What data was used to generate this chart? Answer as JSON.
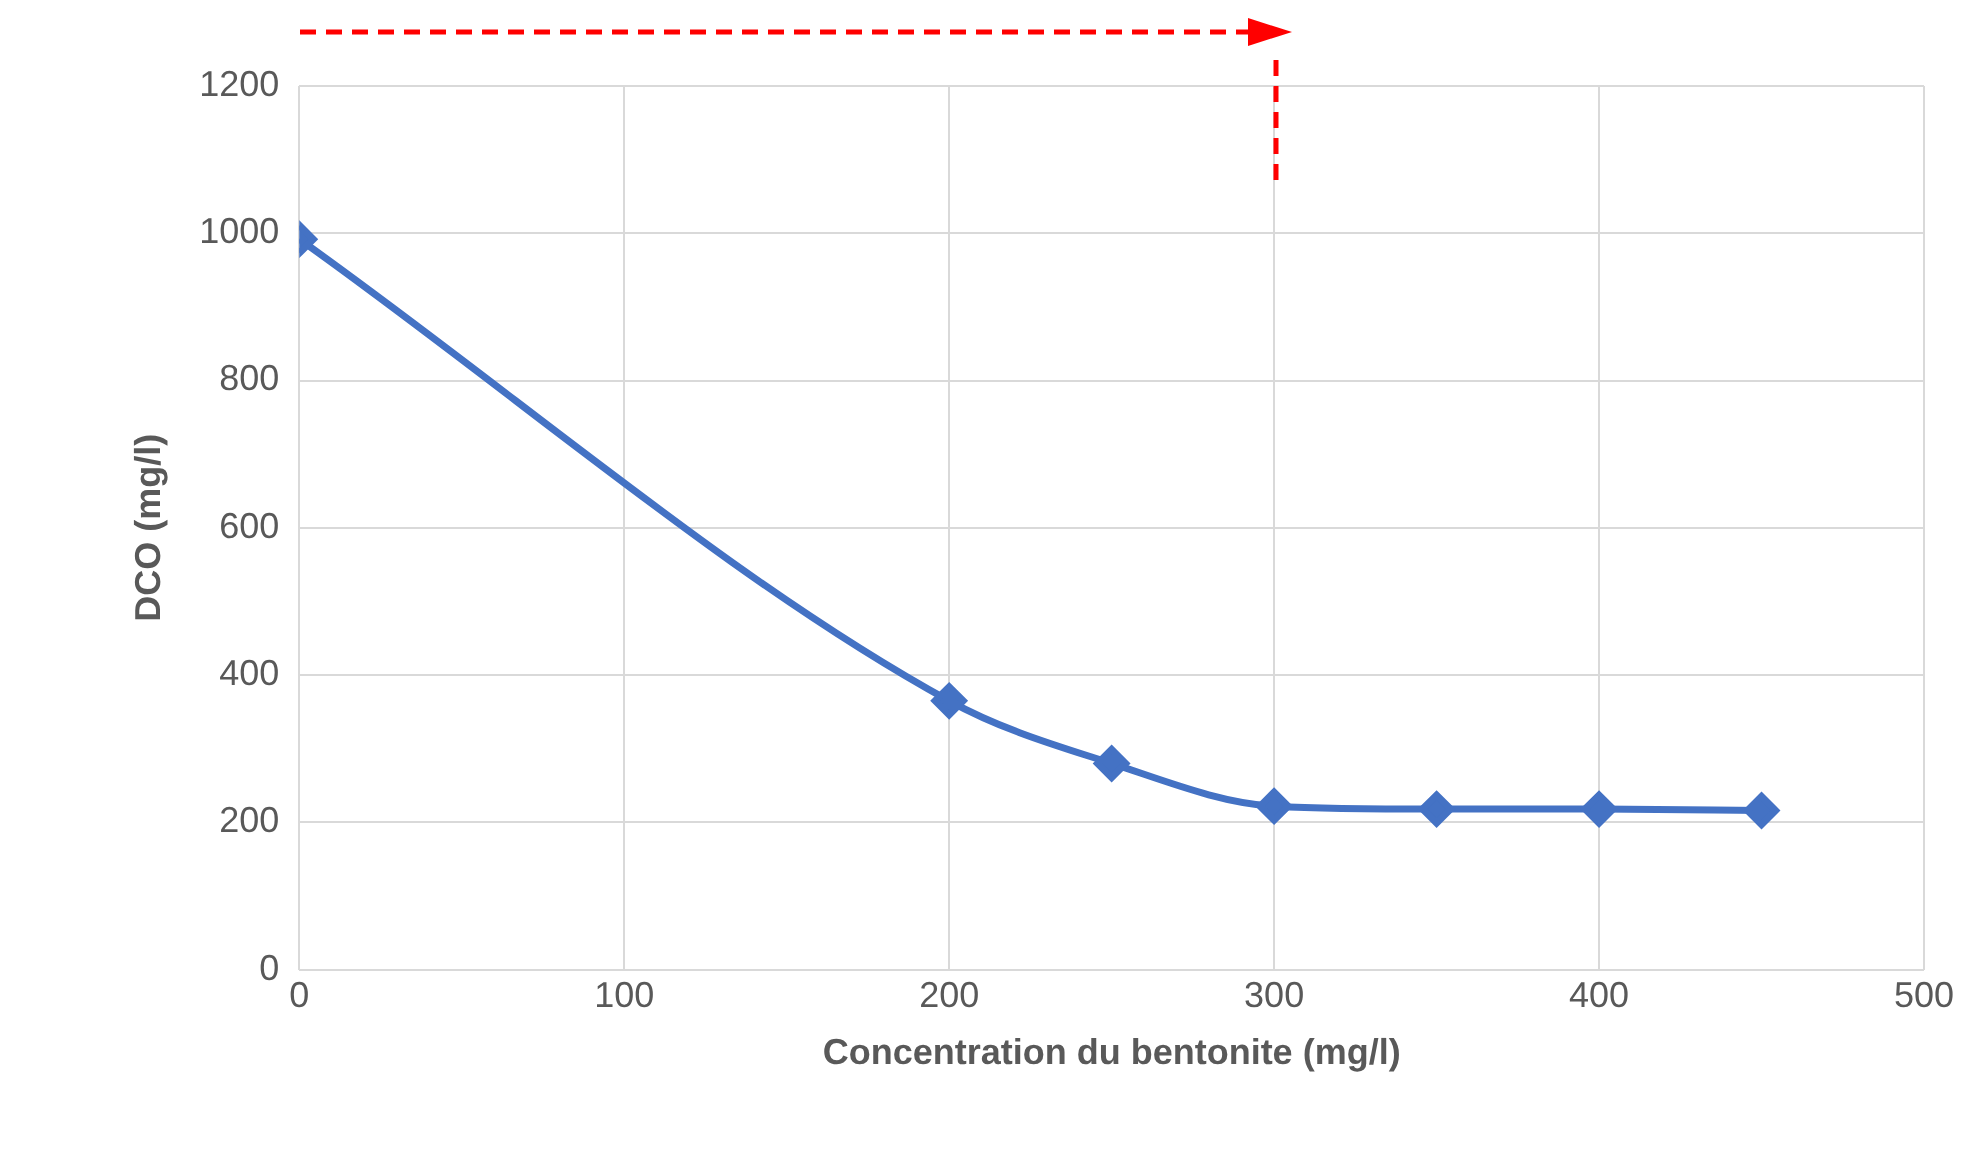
{
  "chart_data": {
    "type": "line",
    "xlabel": "Concentration du bentonite (mg/l)",
    "ylabel": "DCO (mg/l)",
    "x": [
      0,
      200,
      250,
      300,
      350,
      400,
      450
    ],
    "series": [
      {
        "color": "#4472c4",
        "values": [
          992,
          365,
          280,
          222,
          218,
          218,
          216
        ]
      }
    ],
    "xlim": [
      0,
      500
    ],
    "xticks": [
      0,
      100,
      200,
      300,
      400,
      500
    ],
    "ylim": [
      0,
      1200
    ],
    "yticks": [
      0,
      200,
      400,
      600,
      800,
      1000,
      1200
    ],
    "grid": true,
    "legend": false,
    "marker": "diamond",
    "line_style": "solid"
  }
}
